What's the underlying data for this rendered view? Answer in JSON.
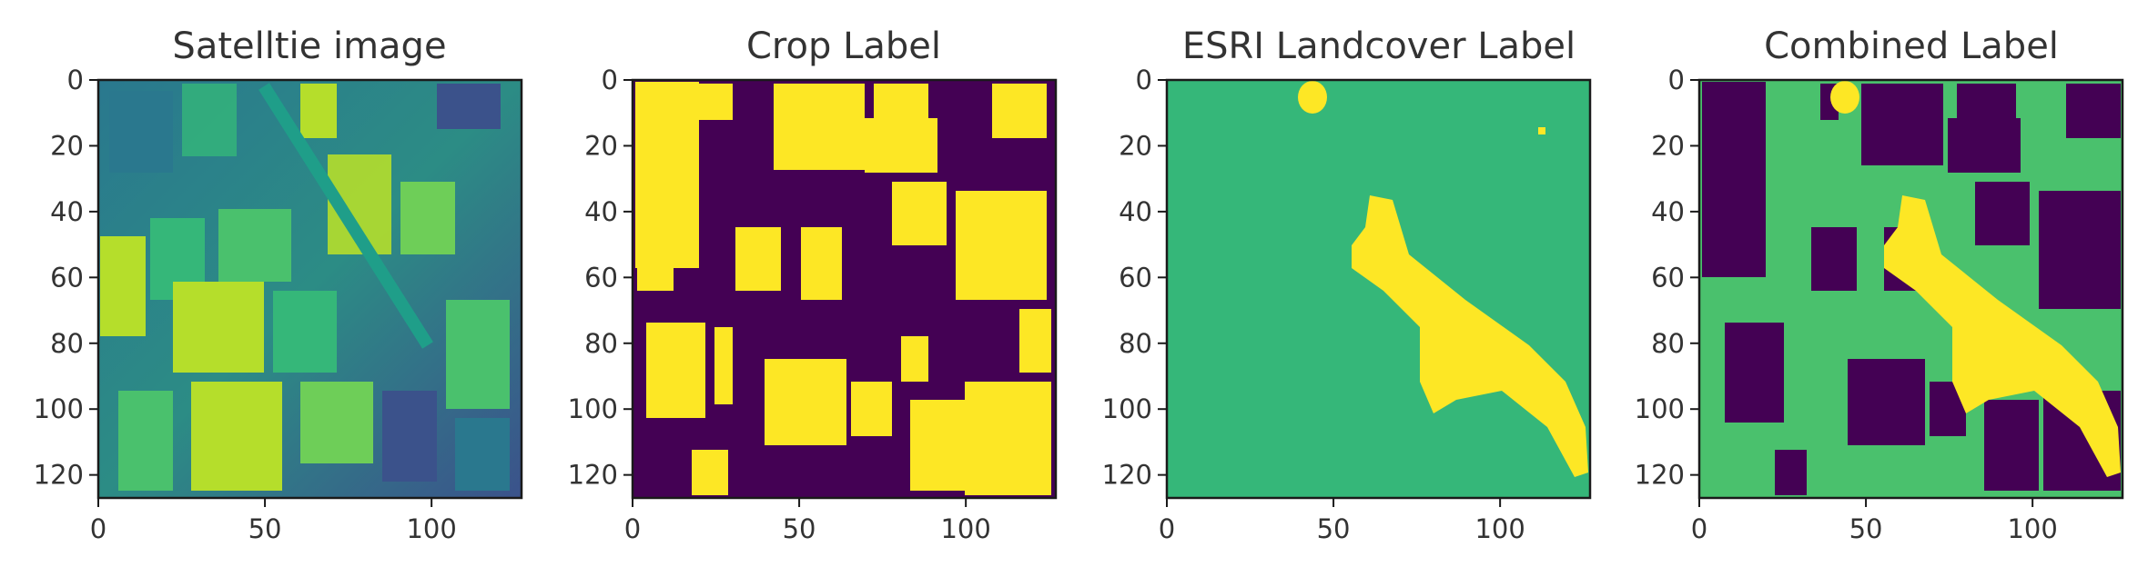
{
  "palette": {
    "dark": "#440154",
    "teal": "#2a788e",
    "green": "#35b779",
    "green2": "#4ac16d",
    "yellow": "#fde725",
    "lime": "#b5de2b",
    "blue": "#3b528b"
  },
  "chart_data": [
    {
      "type": "heatmap",
      "title": "Satelltie image",
      "colormap": "viridis",
      "xlim": [
        0,
        127
      ],
      "ylim": [
        127,
        0
      ],
      "xticks": [
        0,
        50,
        100
      ],
      "yticks": [
        0,
        20,
        40,
        60,
        80,
        100,
        120
      ],
      "grid": false
    },
    {
      "type": "heatmap",
      "title": "Crop Label",
      "colormap": "viridis",
      "classes": [
        "background",
        "crop"
      ],
      "xlim": [
        0,
        127
      ],
      "ylim": [
        127,
        0
      ],
      "xticks": [
        0,
        50,
        100
      ],
      "yticks": [
        0,
        20,
        40,
        60,
        80,
        100,
        120
      ],
      "grid": false
    },
    {
      "type": "heatmap",
      "title": "ESRI Landcover Label",
      "colormap": "viridis",
      "classes": [
        "landcover",
        "water"
      ],
      "xlim": [
        0,
        127
      ],
      "ylim": [
        127,
        0
      ],
      "xticks": [
        0,
        50,
        100
      ],
      "yticks": [
        0,
        20,
        40,
        60,
        80,
        100,
        120
      ],
      "grid": false
    },
    {
      "type": "heatmap",
      "title": "Combined Label",
      "colormap": "viridis",
      "classes": [
        "crop",
        "landcover",
        "water"
      ],
      "xlim": [
        0,
        127
      ],
      "ylim": [
        127,
        0
      ],
      "xticks": [
        0,
        50,
        100
      ],
      "yticks": [
        0,
        20,
        40,
        60,
        80,
        100,
        120
      ],
      "grid": false
    }
  ]
}
